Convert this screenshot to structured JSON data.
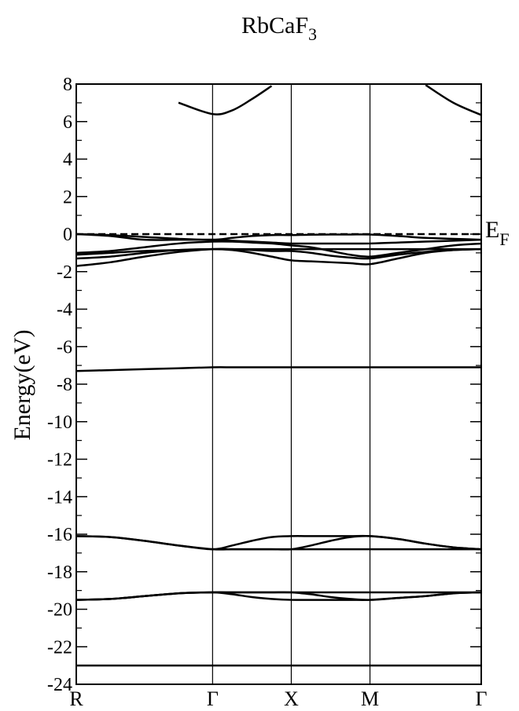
{
  "chart_data": {
    "type": "line",
    "title": "RbCaF",
    "title_subscript": "3",
    "ylabel": "Energy(eV)",
    "fermi_level": 0,
    "fermi_label": "E",
    "fermi_label_subscript": "F",
    "color": "#000000",
    "x": [
      0,
      0.433,
      0.866,
      1.299,
      1.732,
      1.982,
      2.232,
      2.482,
      2.732,
      2.982,
      3.232,
      3.482,
      3.732,
      4.086,
      4.439,
      4.793,
      5.146
    ],
    "xlim": [
      0,
      5.146
    ],
    "xticks": [
      {
        "value": 0,
        "label": "R"
      },
      {
        "value": 1.732,
        "label": "Γ"
      },
      {
        "value": 2.732,
        "label": "X"
      },
      {
        "value": 3.732,
        "label": "M"
      },
      {
        "value": 5.146,
        "label": "Γ"
      }
    ],
    "ylim": [
      -24,
      8
    ],
    "yticks": [
      8,
      6,
      4,
      2,
      0,
      -2,
      -4,
      -6,
      -8,
      -10,
      -12,
      -14,
      -16,
      -18,
      -20,
      -22,
      -24
    ],
    "yminorticks": [
      7,
      5,
      3,
      1,
      -1,
      -3,
      -5,
      -7,
      -9,
      -11,
      -13,
      -15,
      -17,
      -19,
      -21,
      -23
    ],
    "series": [
      {
        "values": [
          null,
          null,
          null,
          7.01,
          6.4,
          6.6,
          7.2,
          7.9,
          null,
          null,
          null,
          null,
          null,
          null,
          7.95,
          7.0,
          6.35
        ]
      },
      {
        "values": [
          0,
          -0.05,
          -0.15,
          -0.25,
          -0.3,
          -0.2,
          -0.1,
          -0.05,
          -0.05,
          -0.03,
          -0.02,
          -0.02,
          -0.02,
          -0.1,
          -0.2,
          -0.25,
          -0.3
        ]
      },
      {
        "values": [
          0,
          -0.1,
          -0.3,
          -0.3,
          -0.3,
          -0.35,
          -0.4,
          -0.45,
          -0.5,
          -0.5,
          -0.5,
          -0.5,
          -0.5,
          -0.45,
          -0.4,
          -0.35,
          -0.3
        ]
      },
      {
        "values": [
          -1.0,
          -0.9,
          -0.7,
          -0.5,
          -0.4,
          -0.4,
          -0.45,
          -0.5,
          -0.6,
          -0.7,
          -0.9,
          -1.1,
          -1.2,
          -1.0,
          -0.8,
          -0.6,
          -0.5
        ]
      },
      {
        "values": [
          -1.1,
          -1.0,
          -0.9,
          -0.85,
          -0.8,
          -0.8,
          -0.85,
          -0.9,
          -0.9,
          -1.0,
          -1.15,
          -1.25,
          -1.3,
          -1.1,
          -0.95,
          -0.85,
          -0.8
        ]
      },
      {
        "values": [
          -1.3,
          -1.2,
          -1.0,
          -0.85,
          -0.8,
          -0.85,
          -1.0,
          -1.2,
          -1.4,
          -1.45,
          -1.5,
          -1.55,
          -1.6,
          -1.3,
          -1.0,
          -0.85,
          -0.8
        ]
      },
      {
        "values": [
          -1.7,
          -1.5,
          -1.2,
          -0.95,
          -0.8,
          -0.8,
          -0.8,
          -0.8,
          -0.8,
          -0.8,
          -0.8,
          -0.8,
          -0.8,
          -0.8,
          -0.8,
          -0.8,
          -0.8
        ]
      },
      {
        "values": [
          -7.3,
          -7.25,
          -7.2,
          -7.15,
          -7.1,
          -7.1,
          -7.1,
          -7.1,
          -7.1,
          -7.1,
          -7.1,
          -7.1,
          -7.1,
          -7.1,
          -7.1,
          -7.1,
          -7.1
        ]
      },
      {
        "values": [
          -16.1,
          -16.15,
          -16.35,
          -16.6,
          -16.8,
          -16.6,
          -16.35,
          -16.15,
          -16.1,
          -16.1,
          -16.1,
          -16.1,
          -16.1,
          -16.25,
          -16.5,
          -16.7,
          -16.8
        ]
      },
      {
        "values": [
          -16.1,
          -16.15,
          -16.35,
          -16.6,
          -16.8,
          -16.8,
          -16.8,
          -16.8,
          -16.8,
          -16.6,
          -16.35,
          -16.15,
          -16.1,
          -16.25,
          -16.5,
          -16.7,
          -16.8
        ]
      },
      {
        "values": [
          null,
          null,
          null,
          null,
          -16.8,
          -16.8,
          -16.8,
          -16.8,
          -16.8,
          -16.8,
          -16.8,
          -16.8,
          -16.8,
          -16.8,
          -16.8,
          -16.8,
          -16.8
        ]
      },
      {
        "values": [
          -19.5,
          -19.45,
          -19.3,
          -19.15,
          -19.1,
          -19.1,
          -19.1,
          -19.1,
          -19.1,
          -19.1,
          -19.1,
          -19.1,
          -19.1,
          -19.1,
          -19.1,
          -19.1,
          -19.1
        ]
      },
      {
        "values": [
          -19.5,
          -19.45,
          -19.3,
          -19.15,
          -19.1,
          -19.2,
          -19.35,
          -19.45,
          -19.5,
          -19.5,
          -19.5,
          -19.5,
          -19.5,
          -19.4,
          -19.3,
          -19.15,
          -19.1
        ]
      },
      {
        "values": [
          -19.5,
          -19.45,
          -19.3,
          -19.15,
          -19.1,
          -19.1,
          -19.1,
          -19.1,
          -19.1,
          -19.2,
          -19.35,
          -19.45,
          -19.5,
          -19.4,
          -19.3,
          -19.15,
          -19.1
        ]
      },
      {
        "values": [
          -23.0,
          -23.0,
          -23.0,
          -23.0,
          -23.0,
          -23.0,
          -23.0,
          -23.0,
          -23.0,
          -23.0,
          -23.0,
          -23.0,
          -23.0,
          -23.0,
          -23.0,
          -23.0,
          -23.0
        ]
      }
    ]
  }
}
